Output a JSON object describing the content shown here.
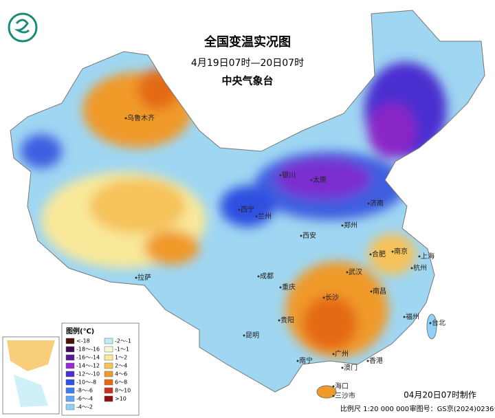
{
  "header": {
    "title": "全国变温实况图",
    "subtitle": "4月19日07时—20日07时",
    "issuer": "中央气象台"
  },
  "legend": {
    "title": "图例(℃)",
    "items": [
      {
        "label": "<-18",
        "color": "#4a0f0f"
      },
      {
        "label": "-18～-16",
        "color": "#3d0b55"
      },
      {
        "label": "-16～-14",
        "color": "#5b1a8c"
      },
      {
        "label": "-14～-12",
        "color": "#9b28d6"
      },
      {
        "label": "-12～-10",
        "color": "#4b2fd0"
      },
      {
        "label": "-10～-8",
        "color": "#2f4fe0"
      },
      {
        "label": "-8～-6",
        "color": "#3f7df0"
      },
      {
        "label": "-6～-4",
        "color": "#5fa5f5"
      },
      {
        "label": "-4～-2",
        "color": "#8fd0f7"
      },
      {
        "label": "-2～-1",
        "color": "#c2ecf4"
      },
      {
        "label": "-1～1",
        "color": "#f4f7d8"
      },
      {
        "label": "1～2",
        "color": "#f8e89a"
      },
      {
        "label": "2～4",
        "color": "#f6c25a"
      },
      {
        "label": "4～6",
        "color": "#f09a2a"
      },
      {
        "label": "6～8",
        "color": "#e56a12"
      },
      {
        "label": "8～10",
        "color": "#c8321a"
      },
      {
        "label": ">10",
        "color": "#8e1010"
      }
    ]
  },
  "cities": [
    "乌鲁木齐",
    "拉萨",
    "西宁",
    "兰州",
    "银川",
    "太原",
    "济南",
    "郑州",
    "西安",
    "成都",
    "重庆",
    "贵阳",
    "昆明",
    "南宁",
    "广州",
    "香港",
    "澳门",
    "海口",
    "三沙市",
    "长沙",
    "武汉",
    "南昌",
    "合肥",
    "南京",
    "上海",
    "杭州",
    "福州",
    "台北"
  ],
  "footer": {
    "made": "04月20日07时制作",
    "scale": "比例尺 1:20 000 000",
    "approval": "审图号：GS京(2024)0236号"
  }
}
